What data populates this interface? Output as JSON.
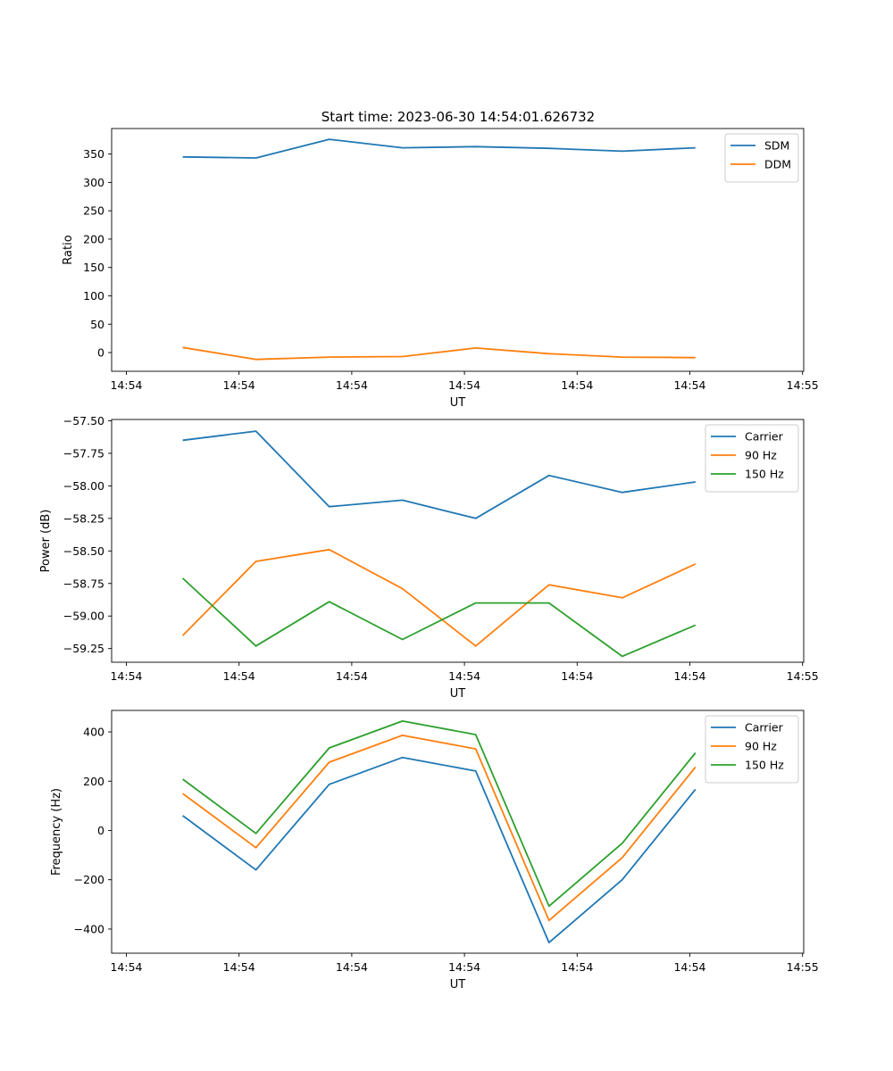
{
  "title": "Start time: 2023-06-30 14:54:01.626732",
  "colors": {
    "blue": "#1f77b4",
    "orange": "#ff7f0e",
    "green": "#2ca02c"
  },
  "chart_data": [
    {
      "type": "line",
      "xlabel": "UT",
      "ylabel": "Ratio",
      "x_tick_labels": [
        "14:54",
        "14:54",
        "14:54",
        "14:54",
        "14:54",
        "14:54",
        "14:55"
      ],
      "y_ticks": [
        0,
        50,
        100,
        150,
        200,
        250,
        300,
        350
      ],
      "y_tick_labels": [
        "0",
        "50",
        "100",
        "150",
        "200",
        "250",
        "300",
        "350"
      ],
      "ylim": [
        -33,
        395
      ],
      "legend_location": "upper right",
      "x": [
        0.5,
        1.15,
        1.8,
        2.45,
        3.1,
        3.75,
        4.4,
        5.05
      ],
      "series": [
        {
          "name": "SDM",
          "color": "#1f77b4",
          "values": [
            345,
            343,
            376,
            361,
            363,
            360,
            355,
            361
          ]
        },
        {
          "name": "DDM",
          "color": "#ff7f0e",
          "values": [
            9,
            -12,
            -8,
            -7,
            8,
            -2,
            -8,
            -9
          ]
        }
      ]
    },
    {
      "type": "line",
      "xlabel": "UT",
      "ylabel": "Power (dB)",
      "x_tick_labels": [
        "14:54",
        "14:54",
        "14:54",
        "14:54",
        "14:54",
        "14:54",
        "14:55"
      ],
      "y_ticks": [
        -59.25,
        -59.0,
        -58.75,
        -58.5,
        -58.25,
        -58.0,
        -57.75,
        -57.5
      ],
      "y_tick_labels": [
        "−59.25",
        "−59.00",
        "−58.75",
        "−58.50",
        "−58.25",
        "−58.00",
        "−57.75",
        "−57.50"
      ],
      "ylim": [
        -59.355,
        -57.49
      ],
      "legend_location": "upper right",
      "x": [
        0.5,
        1.15,
        1.8,
        2.45,
        3.1,
        3.75,
        4.4,
        5.05
      ],
      "series": [
        {
          "name": "Carrier",
          "color": "#1f77b4",
          "values": [
            -57.65,
            -57.58,
            -58.16,
            -58.11,
            -58.25,
            -57.92,
            -58.05,
            -57.97
          ]
        },
        {
          "name": "90 Hz",
          "color": "#ff7f0e",
          "values": [
            -59.15,
            -58.58,
            -58.49,
            -58.79,
            -59.23,
            -58.76,
            -58.86,
            -58.6
          ]
        },
        {
          "name": "150 Hz",
          "color": "#2ca02c",
          "values": [
            -58.71,
            -59.23,
            -58.89,
            -59.18,
            -58.9,
            -58.9,
            -59.31,
            -59.07
          ]
        }
      ]
    },
    {
      "type": "line",
      "xlabel": "UT",
      "ylabel": "Frequency (Hz)",
      "x_tick_labels": [
        "14:54",
        "14:54",
        "14:54",
        "14:54",
        "14:54",
        "14:54",
        "14:55"
      ],
      "y_ticks": [
        -400,
        -200,
        0,
        200,
        400
      ],
      "y_tick_labels": [
        "−400",
        "−200",
        "0",
        "200",
        "400"
      ],
      "ylim": [
        -498,
        487
      ],
      "legend_location": "upper right",
      "x": [
        0.5,
        1.15,
        1.8,
        2.45,
        3.1,
        3.75,
        4.4,
        5.05
      ],
      "series": [
        {
          "name": "Carrier",
          "color": "#1f77b4",
          "values": [
            60,
            -160,
            187,
            296,
            241,
            -455,
            -200,
            167
          ]
        },
        {
          "name": "90 Hz",
          "color": "#ff7f0e",
          "values": [
            150,
            -70,
            277,
            386,
            331,
            -365,
            -110,
            257
          ]
        },
        {
          "name": "150 Hz",
          "color": "#2ca02c",
          "values": [
            208,
            -12,
            335,
            444,
            389,
            -307,
            -52,
            315
          ]
        }
      ]
    }
  ]
}
